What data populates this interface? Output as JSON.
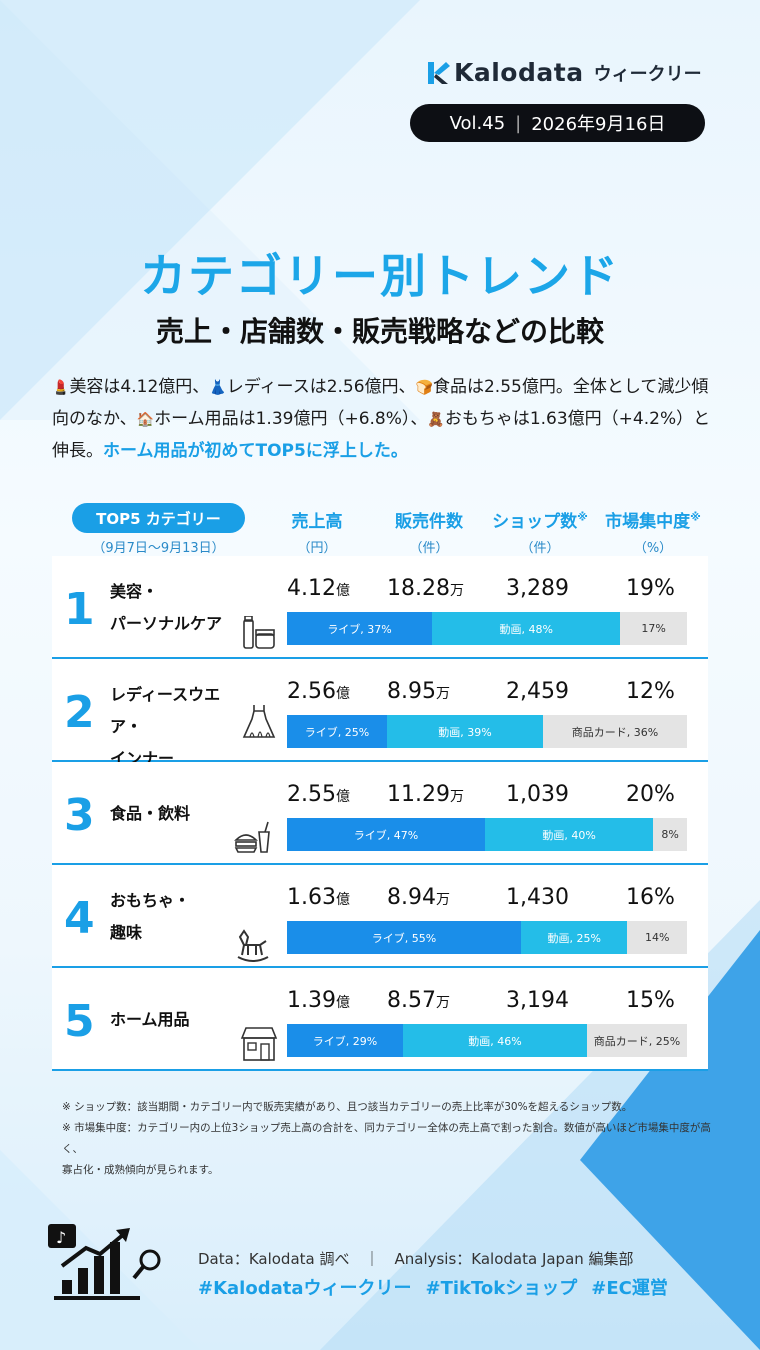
{
  "header": {
    "brand": "Kalodata",
    "brand_sub": "ウィークリー",
    "volume": "Vol.45",
    "date": "2026年9月16日"
  },
  "title": "カテゴリー別トレンド",
  "subtitle": "売上・店舗数・販売戦略などの比較",
  "intro": {
    "s1": "美容は4.12億円、",
    "s2": "レディースは2.56億円、",
    "s3": "食品は2.55億円。全体として減少傾向のなか、",
    "s4": "ホーム用品は1.39億円（+6.8%）、",
    "s5": "おもちゃは1.63億円（+4.2%）と伸長。",
    "highlight": "ホーム用品が初めてTOP5に浮上した。"
  },
  "table_header": {
    "label": "TOP5 カテゴリー",
    "period": "（9月7日〜9月13日）",
    "columns": [
      {
        "name": "売上高",
        "mark": "",
        "unit": "（円）"
      },
      {
        "name": "販売件数",
        "mark": "",
        "unit": "（件）"
      },
      {
        "name": "ショップ数",
        "mark": "※",
        "unit": "（件）"
      },
      {
        "name": "市場集中度",
        "mark": "※",
        "unit": "（%）"
      }
    ]
  },
  "chart_data": {
    "type": "table",
    "rows": [
      {
        "rank": "1",
        "name_lines": [
          "美容・",
          "パーソナルケア"
        ],
        "icon": "cosmetics-icon",
        "sales": "4.12",
        "sales_unit": "億",
        "orders": "18.28",
        "orders_unit": "万",
        "shops": "3,289",
        "concentration": "19%",
        "channels": [
          {
            "kind": "live",
            "label": "ライブ, 37%",
            "value": 37
          },
          {
            "kind": "video",
            "label": "動画, 48%",
            "value": 48
          },
          {
            "kind": "other",
            "label": "17%",
            "value": 17
          }
        ]
      },
      {
        "rank": "2",
        "name_lines": [
          "レディースウエア・",
          "インナー"
        ],
        "icon": "dress-icon",
        "sales": "2.56",
        "sales_unit": "億",
        "orders": "8.95",
        "orders_unit": "万",
        "shops": "2,459",
        "concentration": "12%",
        "channels": [
          {
            "kind": "live",
            "label": "ライブ, 25%",
            "value": 25
          },
          {
            "kind": "video",
            "label": "動画, 39%",
            "value": 39
          },
          {
            "kind": "other",
            "label": "商品カード, 36%",
            "value": 36
          }
        ]
      },
      {
        "rank": "3",
        "name_lines": [
          "食品・飲料"
        ],
        "icon": "food-drink-icon",
        "sales": "2.55",
        "sales_unit": "億",
        "orders": "11.29",
        "orders_unit": "万",
        "shops": "1,039",
        "concentration": "20%",
        "channels": [
          {
            "kind": "live",
            "label": "ライブ, 47%",
            "value": 47
          },
          {
            "kind": "video",
            "label": "動画, 40%",
            "value": 40
          },
          {
            "kind": "other",
            "label": "8%",
            "value": 8
          }
        ]
      },
      {
        "rank": "4",
        "name_lines": [
          "おもちゃ・",
          "趣味"
        ],
        "icon": "rocking-horse-icon",
        "sales": "1.63",
        "sales_unit": "億",
        "orders": "8.94",
        "orders_unit": "万",
        "shops": "1,430",
        "concentration": "16%",
        "channels": [
          {
            "kind": "live",
            "label": "ライブ, 55%",
            "value": 55
          },
          {
            "kind": "video",
            "label": "動画, 25%",
            "value": 25
          },
          {
            "kind": "other",
            "label": "14%",
            "value": 14
          }
        ]
      },
      {
        "rank": "5",
        "name_lines": [
          "ホーム用品"
        ],
        "icon": "house-icon",
        "sales": "1.39",
        "sales_unit": "億",
        "orders": "8.57",
        "orders_unit": "万",
        "shops": "3,194",
        "concentration": "15%",
        "channels": [
          {
            "kind": "live",
            "label": "ライブ, 29%",
            "value": 29
          },
          {
            "kind": "video",
            "label": "動画, 46%",
            "value": 46
          },
          {
            "kind": "other",
            "label": "商品カード, 25%",
            "value": 25
          }
        ]
      }
    ]
  },
  "notes": [
    "※ ショップ数：該当期間・カテゴリー内で販売実績があり、且つ該当カテゴリーの売上比率が30%を超えるショップ数。",
    "※ 市場集中度：カテゴリー内の上位3ショップ売上高の合計を、同カテゴリー全体の売上高で割った割合。数値が高いほど市場集中度が高く、",
    "寡占化・成熟傾向が見られます。"
  ],
  "footer": {
    "credit": "Data：Kalodata 調べ　｜　Analysis：Kalodata Japan 編集部",
    "tags": [
      "#Kalodataウィークリー",
      "#TikTokショップ",
      "#EC運営"
    ]
  },
  "colors": {
    "accent": "#1a9fe6",
    "live": "#1a8ee9",
    "video": "#24bde8",
    "other": "#e4e4e4"
  }
}
